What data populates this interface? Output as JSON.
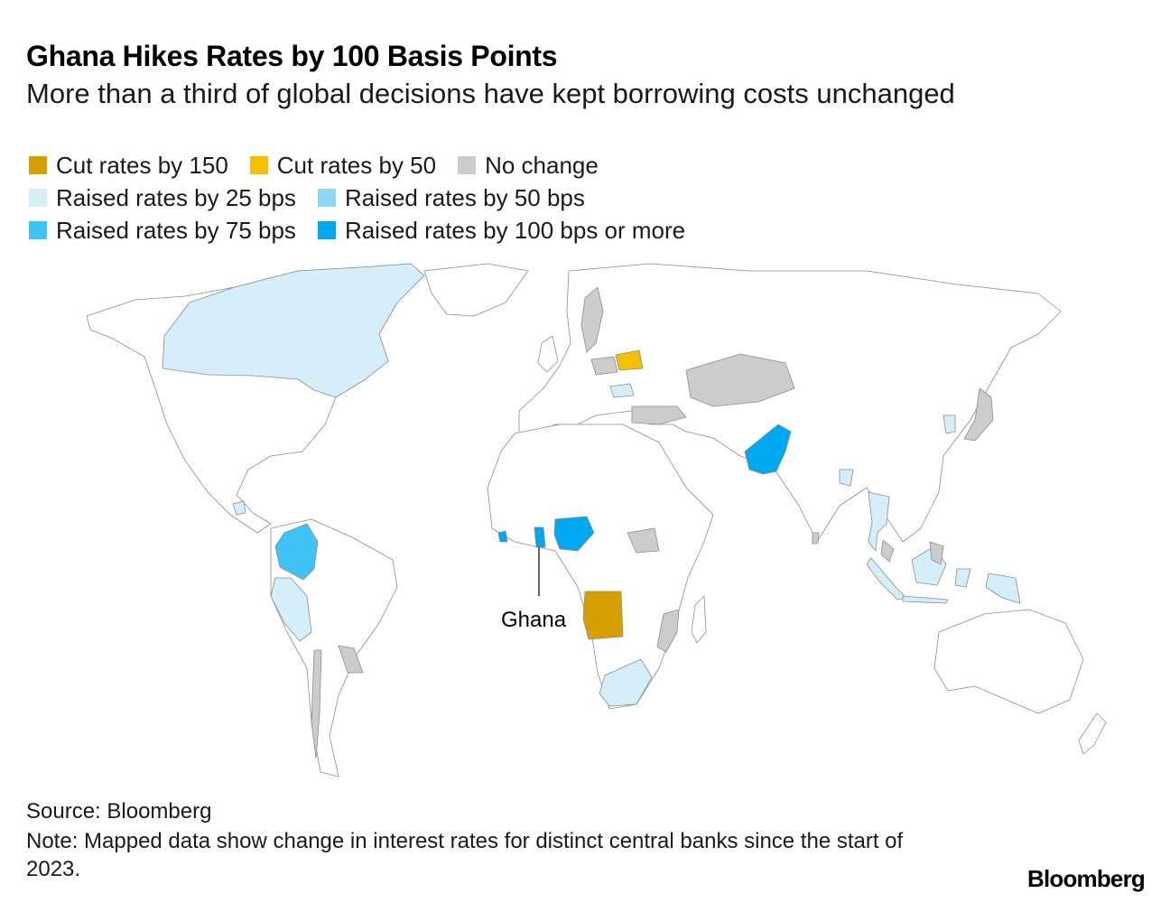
{
  "title": "Ghana Hikes Rates by 100 Basis Points",
  "subtitle": "More than a third of global decisions have kept borrowing costs unchanged",
  "legend": [
    {
      "label": "Cut rates by 150",
      "color": "#d6a100"
    },
    {
      "label": "Cut rates by 50",
      "color": "#f5c000"
    },
    {
      "label": "No change",
      "color": "#cccccc"
    },
    {
      "label": "Raised rates by 25 bps",
      "color": "#d5effa"
    },
    {
      "label": "Raised rates by 50 bps",
      "color": "#8dd7f7"
    },
    {
      "label": "Raised rates by 75 bps",
      "color": "#3fc2f5"
    },
    {
      "label": "Raised rates by 100 bps or more",
      "color": "#00a8f0"
    }
  ],
  "map": {
    "annotation": "Ghana",
    "colors": {
      "cut150": "#d6a100",
      "cut50": "#f5c000",
      "none": "#cccccc",
      "r25": "#d5effa",
      "r50": "#8dd7f7",
      "r75": "#3fc2f5",
      "r100": "#00a8f0",
      "base": "#ffffff",
      "border": "#8c8c8c"
    }
  },
  "source": "Source: Bloomberg",
  "note": "Note: Mapped data show change in interest rates for distinct central banks since the start of 2023.",
  "brand": "Bloomberg"
}
